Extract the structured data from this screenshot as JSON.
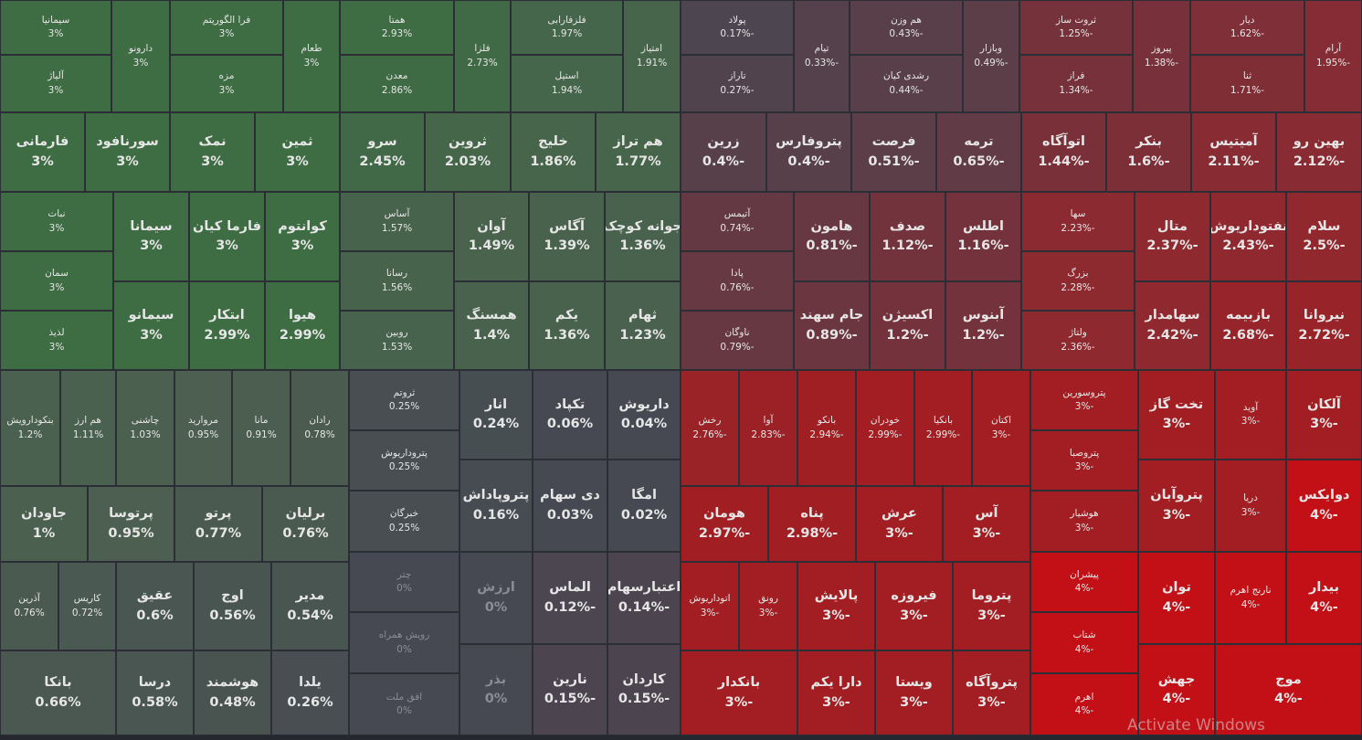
{
  "tiles": [
    {
      "name": "سیمانیا",
      "change": "3%"
    },
    {
      "name": "آلیاژ",
      "change": "3%"
    },
    {
      "name": "دارونو",
      "change": "3%"
    },
    {
      "name": "فرا الگوریتم",
      "change": "3%"
    },
    {
      "name": "مزه",
      "change": "3%"
    },
    {
      "name": "طعام",
      "change": "3%"
    },
    {
      "name": "همتا",
      "change": "2.93%"
    },
    {
      "name": "معدن",
      "change": "2.86%"
    },
    {
      "name": "فلزا",
      "change": "2.73%"
    },
    {
      "name": "فلزفارابی",
      "change": "1.97%"
    },
    {
      "name": "استیل",
      "change": "1.94%"
    },
    {
      "name": "امتیاز",
      "change": "1.91%"
    },
    {
      "name": "فارمانی",
      "change": "3%"
    },
    {
      "name": "سورنافود",
      "change": "3%"
    },
    {
      "name": "نمک",
      "change": "3%"
    },
    {
      "name": "ثمین",
      "change": "3%"
    },
    {
      "name": "سرو",
      "change": "2.45%"
    },
    {
      "name": "ثروین",
      "change": "2.03%"
    },
    {
      "name": "خلیج",
      "change": "1.86%"
    },
    {
      "name": "هم تراز",
      "change": "1.77%"
    },
    {
      "name": "نبات",
      "change": "3%"
    },
    {
      "name": "سمان",
      "change": "3%"
    },
    {
      "name": "لذیذ",
      "change": "3%"
    },
    {
      "name": "سیمانا",
      "change": "3%"
    },
    {
      "name": "سیمانو",
      "change": "3%"
    },
    {
      "name": "فارما کیان",
      "change": "3%"
    },
    {
      "name": "ابتکار",
      "change": "2.99%"
    },
    {
      "name": "کوانتوم",
      "change": "3%"
    },
    {
      "name": "هیوا",
      "change": "2.99%"
    },
    {
      "name": "آساس",
      "change": "1.57%"
    },
    {
      "name": "رسانا",
      "change": "1.56%"
    },
    {
      "name": "روبین",
      "change": "1.53%"
    },
    {
      "name": "آوان",
      "change": "1.49%"
    },
    {
      "name": "همسنگ",
      "change": "1.4%"
    },
    {
      "name": "آگاس",
      "change": "1.39%"
    },
    {
      "name": "یکم",
      "change": "1.36%"
    },
    {
      "name": "جوانه کوچک",
      "change": "1.36%"
    },
    {
      "name": "ثهام",
      "change": "1.23%"
    },
    {
      "name": "بنکودارویش",
      "change": "1.2%"
    },
    {
      "name": "هم ارز",
      "change": "1.11%"
    },
    {
      "name": "چاشنی",
      "change": "1.03%"
    },
    {
      "name": "مروارید",
      "change": "0.95%"
    },
    {
      "name": "مانا",
      "change": "0.91%"
    },
    {
      "name": "رادان",
      "change": "0.78%"
    },
    {
      "name": "جاودان",
      "change": "1%"
    },
    {
      "name": "پرتوسا",
      "change": "0.95%"
    },
    {
      "name": "پرتو",
      "change": "0.77%"
    },
    {
      "name": "برلیان",
      "change": "0.76%"
    },
    {
      "name": "آذرین",
      "change": "0.76%"
    },
    {
      "name": "کاریس",
      "change": "0.72%"
    },
    {
      "name": "بانکا",
      "change": "0.66%"
    },
    {
      "name": "عقیق",
      "change": "0.6%"
    },
    {
      "name": "درسا",
      "change": "0.58%"
    },
    {
      "name": "اوج",
      "change": "0.56%"
    },
    {
      "name": "هوشمند",
      "change": "0.48%"
    },
    {
      "name": "مدیر",
      "change": "0.54%"
    },
    {
      "name": "یلدا",
      "change": "0.26%"
    },
    {
      "name": "ثروتم",
      "change": "0.25%"
    },
    {
      "name": "پتروداریوش",
      "change": "0.25%"
    },
    {
      "name": "خبرگان",
      "change": "0.25%"
    },
    {
      "name": "چتر",
      "change": "0%"
    },
    {
      "name": "رویش همراه",
      "change": "0%"
    },
    {
      "name": "افق ملت",
      "change": "0%"
    },
    {
      "name": "انار",
      "change": "0.24%"
    },
    {
      "name": "پتروپاداش",
      "change": "0.16%"
    },
    {
      "name": "ارزش",
      "change": "0%"
    },
    {
      "name": "بذر",
      "change": "0%"
    },
    {
      "name": "تکپاد",
      "change": "0.06%"
    },
    {
      "name": "دی سهام",
      "change": "0.03%"
    },
    {
      "name": "الماس",
      "change": "-0.12%"
    },
    {
      "name": "نارین",
      "change": "-0.15%"
    },
    {
      "name": "داریوش",
      "change": "0.04%"
    },
    {
      "name": "امگا",
      "change": "0.02%"
    },
    {
      "name": "اعتبارسهام",
      "change": "-0.14%"
    },
    {
      "name": "کاردان",
      "change": "-0.15%"
    },
    {
      "name": "پولاد",
      "change": "-0.17%"
    },
    {
      "name": "تاراز",
      "change": "-0.27%"
    },
    {
      "name": "تیام",
      "change": "-0.33%"
    },
    {
      "name": "هم وزن",
      "change": "-0.43%"
    },
    {
      "name": "رشدی کیان",
      "change": "-0.44%"
    },
    {
      "name": "وبازار",
      "change": "-0.49%"
    },
    {
      "name": "ثروت ساز",
      "change": "-1.25%"
    },
    {
      "name": "فراز",
      "change": "-1.34%"
    },
    {
      "name": "پیروز",
      "change": "-1.38%"
    },
    {
      "name": "دیار",
      "change": "-1.62%"
    },
    {
      "name": "ثنا",
      "change": "-1.71%"
    },
    {
      "name": "آرام",
      "change": "-1.95%"
    },
    {
      "name": "زرین",
      "change": "-0.4%"
    },
    {
      "name": "پتروفارس",
      "change": "-0.4%"
    },
    {
      "name": "فرصت",
      "change": "-0.51%"
    },
    {
      "name": "ترمه",
      "change": "-0.65%"
    },
    {
      "name": "اتوآگاه",
      "change": "-1.44%"
    },
    {
      "name": "بنکر",
      "change": "-1.6%"
    },
    {
      "name": "آمیتیس",
      "change": "-2.11%"
    },
    {
      "name": "بهین رو",
      "change": "-2.12%"
    },
    {
      "name": "آتیمس",
      "change": "-0.74%"
    },
    {
      "name": "پادا",
      "change": "-0.76%"
    },
    {
      "name": "ناوگان",
      "change": "-0.79%"
    },
    {
      "name": "هامون",
      "change": "-0.81%"
    },
    {
      "name": "جام سهند",
      "change": "-0.89%"
    },
    {
      "name": "صدف",
      "change": "-1.12%"
    },
    {
      "name": "اکسیژن",
      "change": "-1.2%"
    },
    {
      "name": "اطلس",
      "change": "-1.16%"
    },
    {
      "name": "آبنوس",
      "change": "-1.2%"
    },
    {
      "name": "سها",
      "change": "-2.23%"
    },
    {
      "name": "بزرگ",
      "change": "-2.28%"
    },
    {
      "name": "ولتاژ",
      "change": "-2.36%"
    },
    {
      "name": "متال",
      "change": "-2.37%"
    },
    {
      "name": "سهامدار",
      "change": "-2.42%"
    },
    {
      "name": "نفتوداریوش",
      "change": "-2.43%"
    },
    {
      "name": "بازبیمه",
      "change": "-2.68%"
    },
    {
      "name": "سلام",
      "change": "-2.5%"
    },
    {
      "name": "نیروانا",
      "change": "-2.72%"
    },
    {
      "name": "رخش",
      "change": "-2.76%"
    },
    {
      "name": "آوا",
      "change": "-2.83%"
    },
    {
      "name": "بانکو",
      "change": "-2.94%"
    },
    {
      "name": "خودران",
      "change": "-2.99%"
    },
    {
      "name": "بانکیا",
      "change": "-2.99%"
    },
    {
      "name": "اکتان",
      "change": "-3%"
    },
    {
      "name": "هومان",
      "change": "-2.97%"
    },
    {
      "name": "پناه",
      "change": "-2.98%"
    },
    {
      "name": "عرش",
      "change": "-3%"
    },
    {
      "name": "آس",
      "change": "-3%"
    },
    {
      "name": "اتوداریوش",
      "change": "-3%"
    },
    {
      "name": "رونق",
      "change": "-3%"
    },
    {
      "name": "بانکدار",
      "change": "-3%"
    },
    {
      "name": "پالایش",
      "change": "-3%"
    },
    {
      "name": "دارا یکم",
      "change": "-3%"
    },
    {
      "name": "فیروزه",
      "change": "-3%"
    },
    {
      "name": "ویستا",
      "change": "-3%"
    },
    {
      "name": "پتروما",
      "change": "-3%"
    },
    {
      "name": "پتروآگاه",
      "change": "-3%"
    },
    {
      "name": "پتروسورین",
      "change": "-3%"
    },
    {
      "name": "پتروصبا",
      "change": "-3%"
    },
    {
      "name": "هوشیار",
      "change": "-3%"
    },
    {
      "name": "پیشران",
      "change": "-4%"
    },
    {
      "name": "شتاب",
      "change": "-4%"
    },
    {
      "name": "اهرم",
      "change": "-4%"
    },
    {
      "name": "تخت گاز",
      "change": "-3%"
    },
    {
      "name": "پتروآبان",
      "change": "-3%"
    },
    {
      "name": "توان",
      "change": "-4%"
    },
    {
      "name": "جهش",
      "change": "-4%"
    },
    {
      "name": "آوید",
      "change": "-3%"
    },
    {
      "name": "دریا",
      "change": "-3%"
    },
    {
      "name": "نارنج اهرم",
      "change": "-4%"
    },
    {
      "name": "آلکان",
      "change": "-3%"
    },
    {
      "name": "دوایکس",
      "change": "-4%"
    },
    {
      "name": "بیدار",
      "change": "-4%"
    },
    {
      "name": "موج",
      "change": "-4%"
    }
  ],
  "watermark": "Activate Windows"
}
